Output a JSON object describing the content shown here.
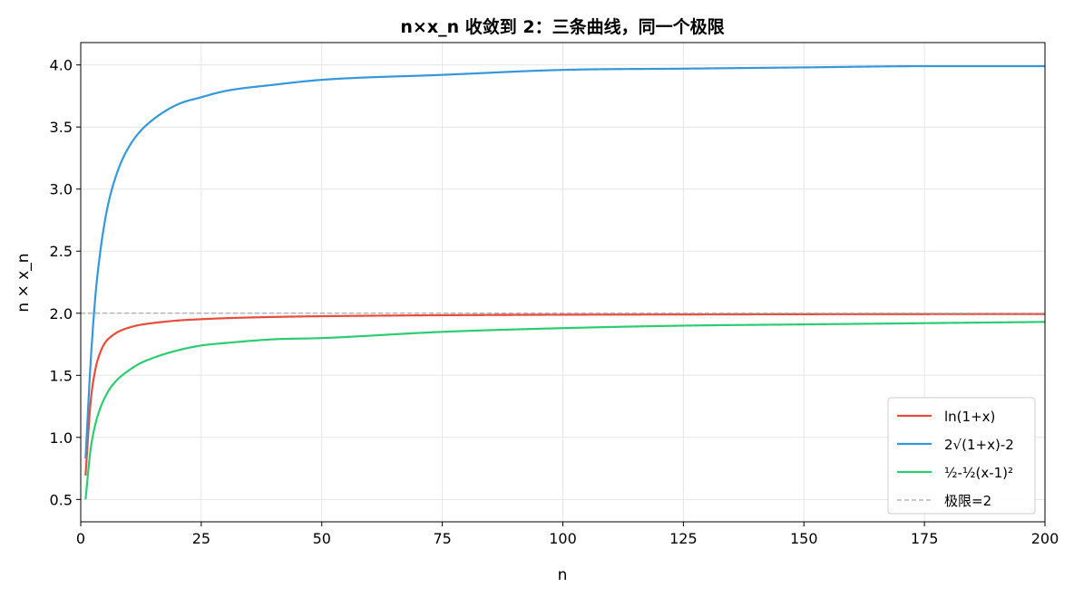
{
  "chart_data": {
    "type": "line",
    "title": "n×x_n 收敛到 2：三条曲线，同一个极限",
    "xlabel": "n",
    "ylabel": "n × x_n",
    "xlim": [
      0,
      200
    ],
    "ylim": [
      0.32,
      4.18
    ],
    "xticks": [
      0,
      25,
      50,
      75,
      100,
      125,
      150,
      175,
      200
    ],
    "yticks": [
      0.5,
      1.0,
      1.5,
      2.0,
      2.5,
      3.0,
      3.5,
      4.0
    ],
    "xtick_labels": [
      "0",
      "25",
      "50",
      "75",
      "100",
      "125",
      "150",
      "175",
      "200"
    ],
    "ytick_labels": [
      "0.5",
      "1.0",
      "1.5",
      "2.0",
      "2.5",
      "3.0",
      "3.5",
      "4.0"
    ],
    "grid": true,
    "legend_position": "lower-right",
    "series": [
      {
        "name": "ln(1+x)",
        "color": "#e74c3c",
        "style": "solid",
        "x": [
          1,
          2,
          3,
          4,
          5,
          6,
          8,
          10,
          12,
          15,
          20,
          25,
          30,
          40,
          50,
          75,
          100,
          125,
          150,
          175,
          200
        ],
        "y": [
          0.693,
          1.265,
          1.541,
          1.679,
          1.76,
          1.803,
          1.855,
          1.884,
          1.904,
          1.921,
          1.941,
          1.952,
          1.96,
          1.97,
          1.976,
          1.984,
          1.988,
          1.99,
          1.992,
          1.993,
          1.994
        ]
      },
      {
        "name": "2√(1+x)-2",
        "color": "#3498db",
        "style": "solid",
        "x": [
          1,
          2,
          3,
          4,
          5,
          6,
          8,
          10,
          12,
          15,
          20,
          25,
          30,
          40,
          50,
          75,
          100,
          125,
          150,
          175,
          200
        ],
        "y": [
          0.83,
          1.57,
          2.12,
          2.48,
          2.74,
          2.93,
          3.18,
          3.34,
          3.45,
          3.56,
          3.68,
          3.74,
          3.79,
          3.84,
          3.88,
          3.92,
          3.96,
          3.97,
          3.98,
          3.99,
          3.99
        ]
      },
      {
        "name": "½-½(x-1)²",
        "color": "#2ecc71",
        "style": "solid",
        "x": [
          1,
          2,
          3,
          4,
          5,
          6,
          8,
          10,
          12,
          15,
          20,
          25,
          30,
          40,
          50,
          75,
          100,
          125,
          150,
          175,
          200
        ],
        "y": [
          0.5,
          0.89,
          1.1,
          1.23,
          1.32,
          1.39,
          1.48,
          1.54,
          1.59,
          1.64,
          1.7,
          1.74,
          1.76,
          1.79,
          1.8,
          1.85,
          1.88,
          1.9,
          1.91,
          1.92,
          1.93
        ]
      },
      {
        "name": "极限=2",
        "color": "#aaaaaa",
        "style": "dashed",
        "x": [
          0,
          200
        ],
        "y": [
          2,
          2
        ]
      }
    ]
  }
}
